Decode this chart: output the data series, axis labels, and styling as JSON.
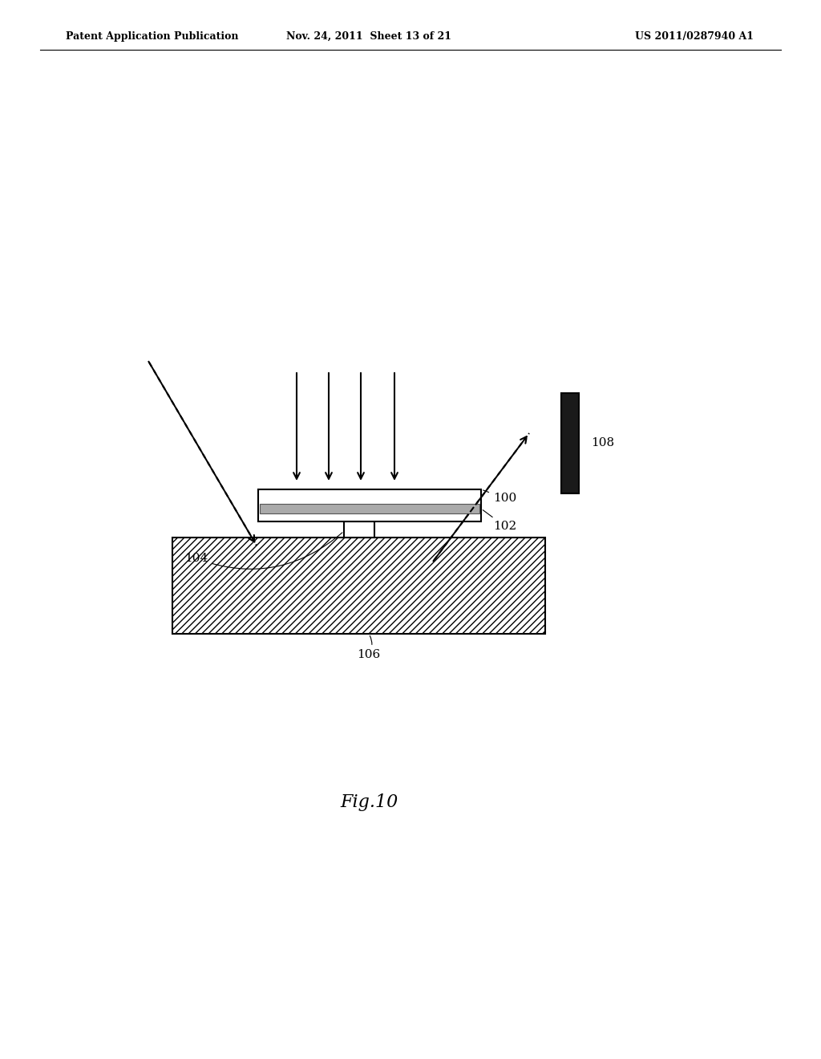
{
  "bg_color": "#ffffff",
  "header_left": "Patent Application Publication",
  "header_center": "Nov. 24, 2011  Sheet 13 of 21",
  "header_right": "US 2011/0287940 A1",
  "fig_label": "Fig.10",
  "label_100": "100",
  "label_102": "102",
  "label_104": "104",
  "label_106": "106",
  "label_108": "108",
  "hatch_pattern": "////",
  "line_color": "#000000",
  "dark_rect_color": "#1a1a1a",
  "header_fontsize": 9,
  "label_fontsize": 11,
  "fig_fontsize": 16
}
